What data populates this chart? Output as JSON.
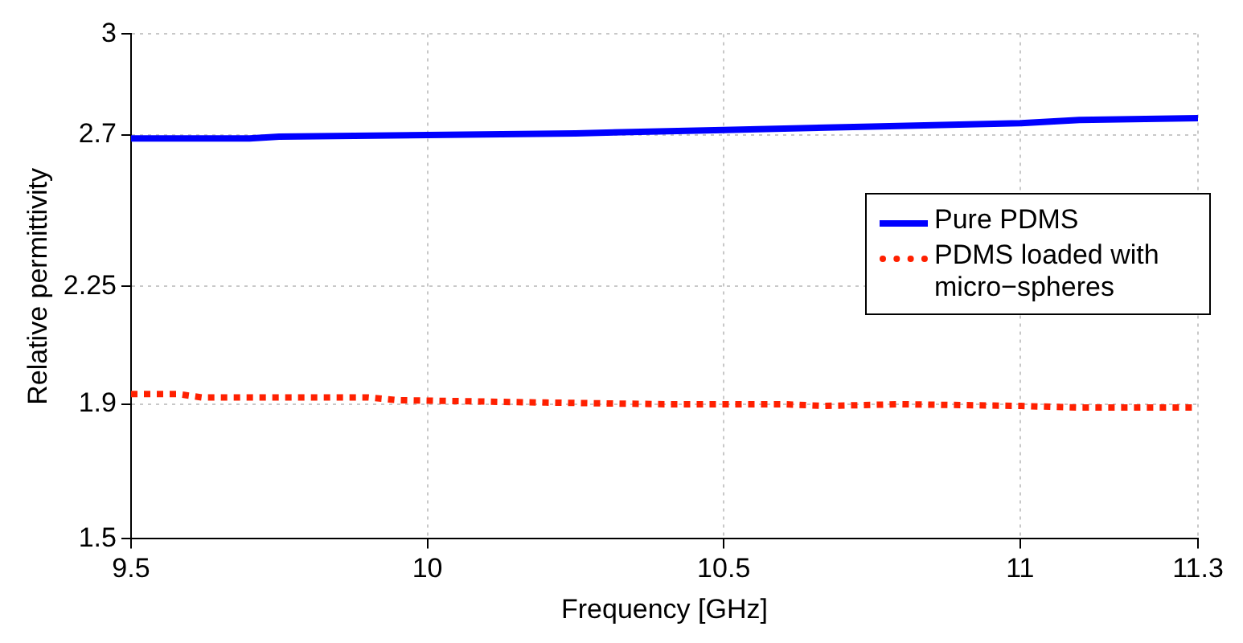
{
  "chart_data": {
    "type": "line",
    "xlabel": "Frequency [GHz]",
    "ylabel": "Relative permittivity",
    "xlim": [
      9.5,
      11.3
    ],
    "xticks": [
      9.5,
      10,
      10.5,
      11,
      11.3
    ],
    "ylim": [
      1.5,
      3
    ],
    "yticks": [
      1.5,
      1.9,
      2.25,
      2.7,
      3
    ],
    "grid": true,
    "legend": "right",
    "marker": "none",
    "series": [
      {
        "name": "Pure PDMS",
        "color": "#0000ff",
        "line_style": "solid",
        "x": [
          9.5,
          9.7,
          9.75,
          10,
          10.25,
          10.5,
          10.75,
          11,
          11.1,
          11.3
        ],
        "values": [
          2.69,
          2.69,
          2.695,
          2.7,
          2.705,
          2.715,
          2.725,
          2.735,
          2.745,
          2.75
        ]
      },
      {
        "name": "PDMS loaded with micro−spheres",
        "color": "#ff2000",
        "line_style": "dotted",
        "x": [
          9.5,
          9.58,
          9.62,
          9.7,
          9.9,
          9.95,
          10.2,
          10.4,
          10.6,
          10.67,
          10.8,
          11,
          11.1,
          11.3
        ],
        "values": [
          1.93,
          1.93,
          1.92,
          1.92,
          1.92,
          1.912,
          1.905,
          1.9,
          1.9,
          1.895,
          1.9,
          1.895,
          1.89,
          1.89
        ]
      }
    ]
  }
}
